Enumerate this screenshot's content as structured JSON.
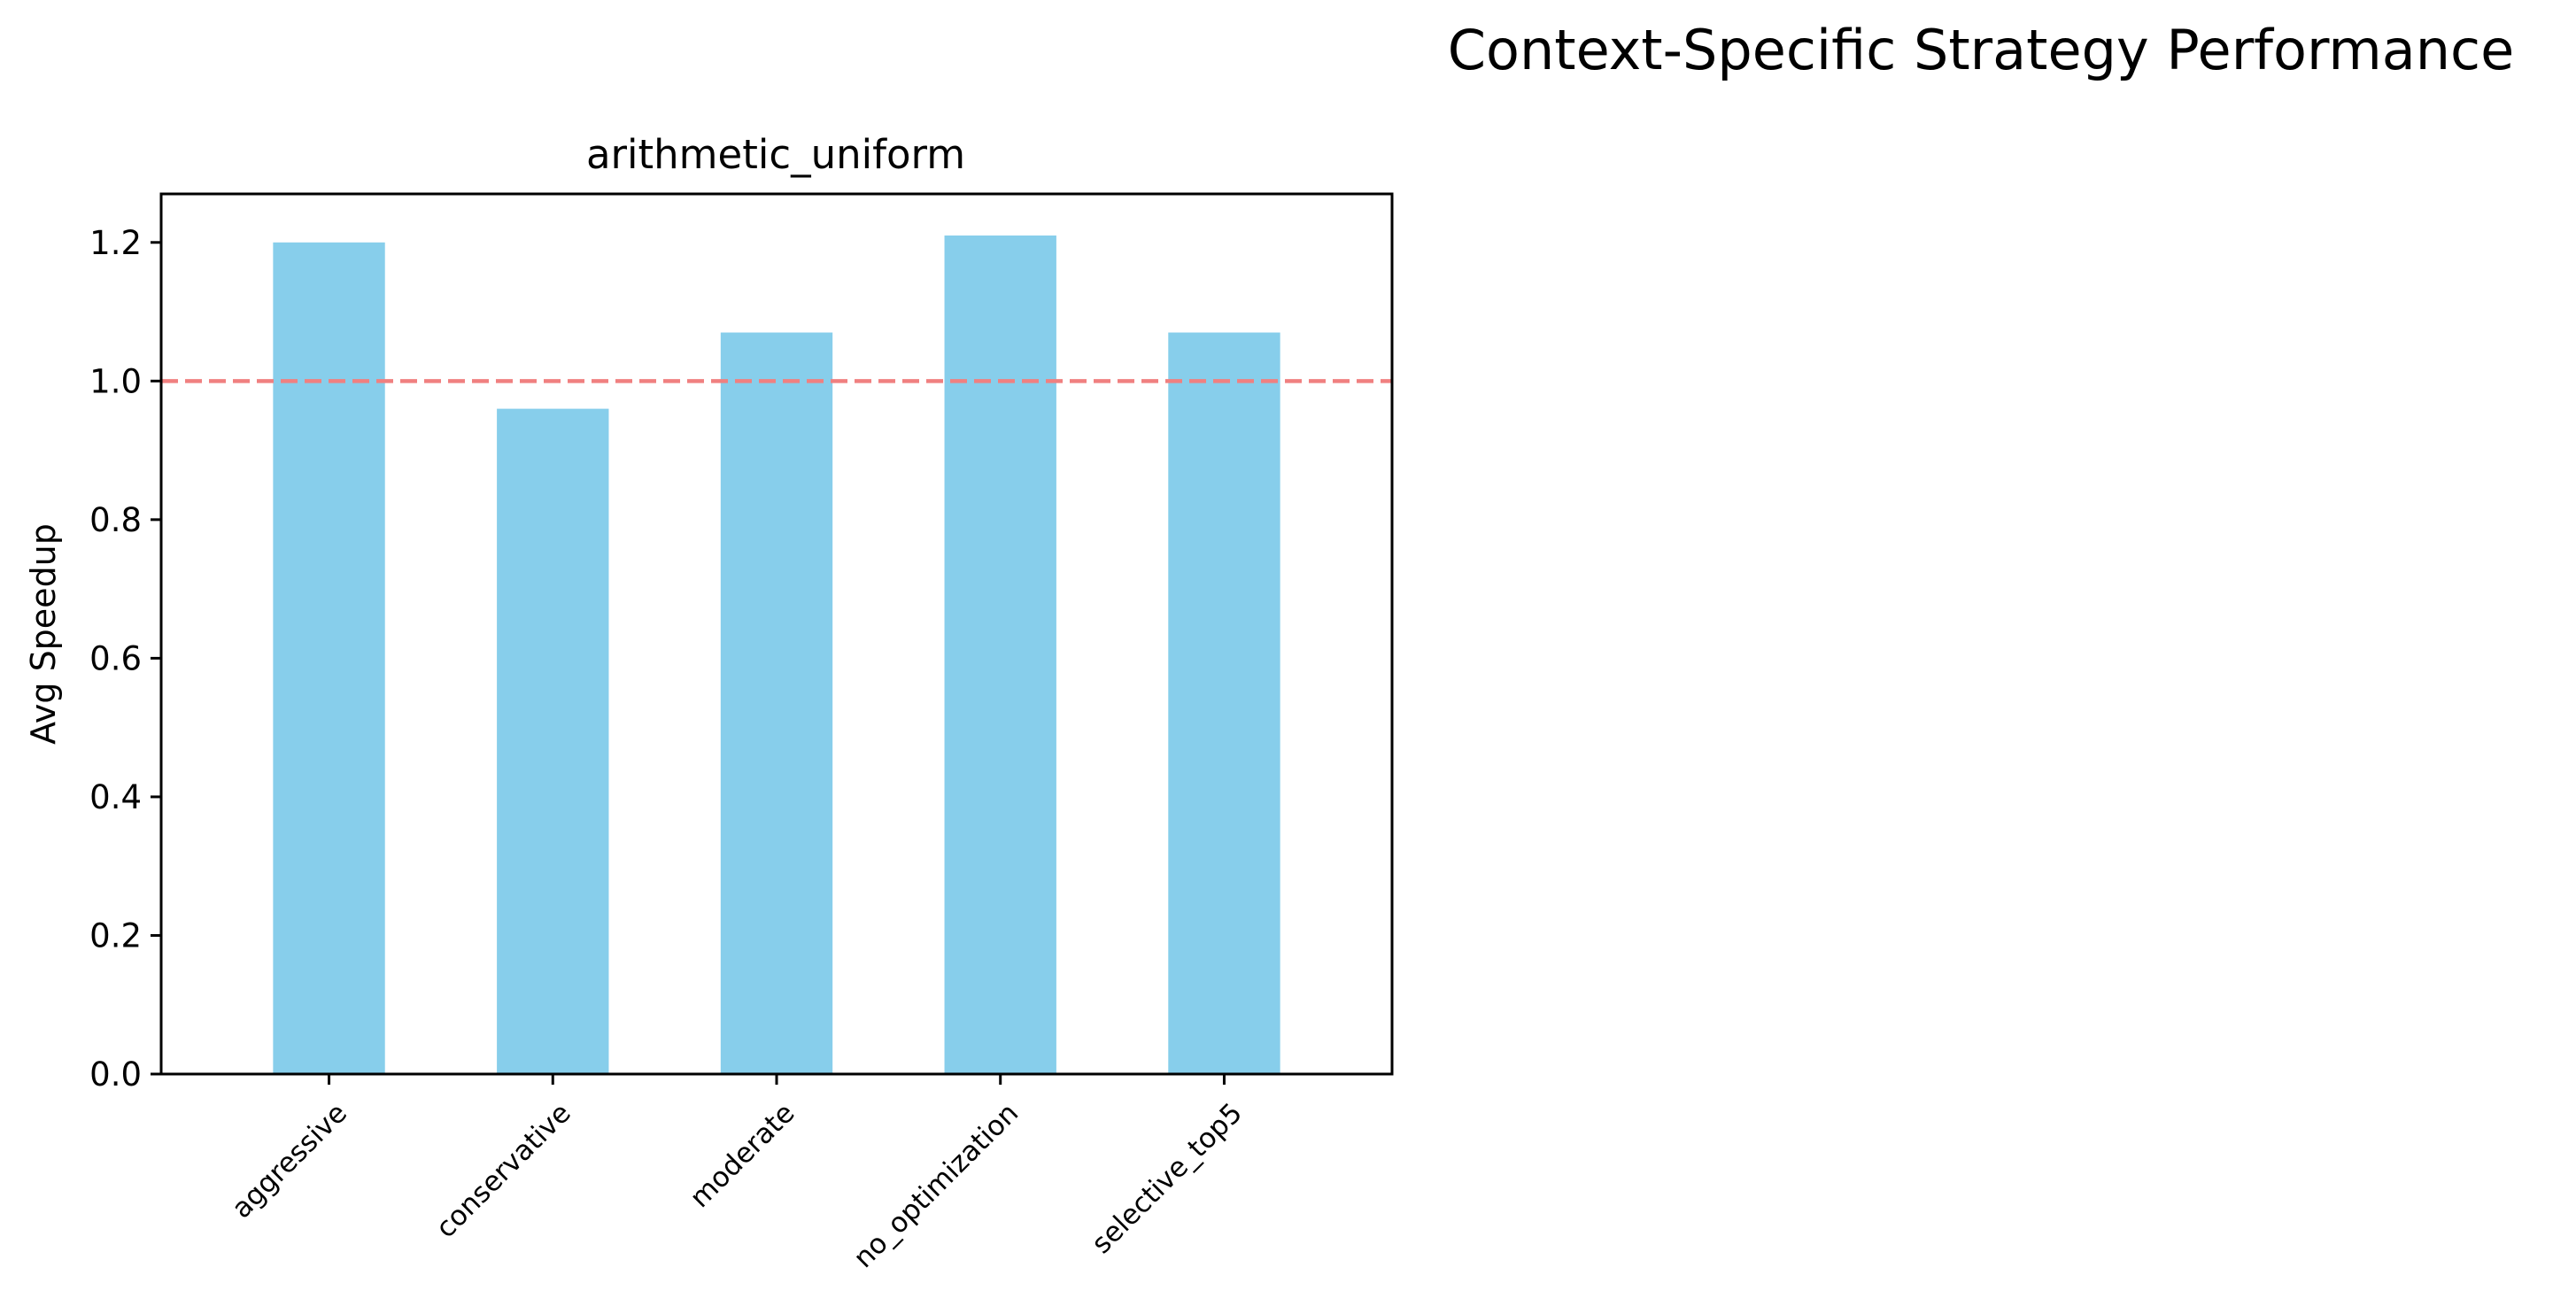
{
  "figure": {
    "suptitle": "Context-Specific Strategy Performance"
  },
  "chart_data": {
    "type": "bar",
    "title": "arithmetic_uniform",
    "xlabel": "",
    "ylabel": "Avg Speedup",
    "categories": [
      "aggressive",
      "conservative",
      "moderate",
      "no_optimization",
      "selective_top5"
    ],
    "values": [
      1.2,
      0.96,
      1.07,
      1.21,
      1.07
    ],
    "ylim": [
      0,
      1.27
    ],
    "yticks": [
      0.0,
      0.2,
      0.4,
      0.6,
      0.8,
      1.0,
      1.2
    ],
    "ytick_labels": [
      "0.0",
      "0.2",
      "0.4",
      "0.6",
      "0.8",
      "1.0",
      "1.2"
    ],
    "reference_line": {
      "y": 1.0,
      "style": "dashed",
      "color": "#f08080"
    },
    "bar_color": "#87ceeb",
    "grid": false,
    "legend": "none"
  }
}
